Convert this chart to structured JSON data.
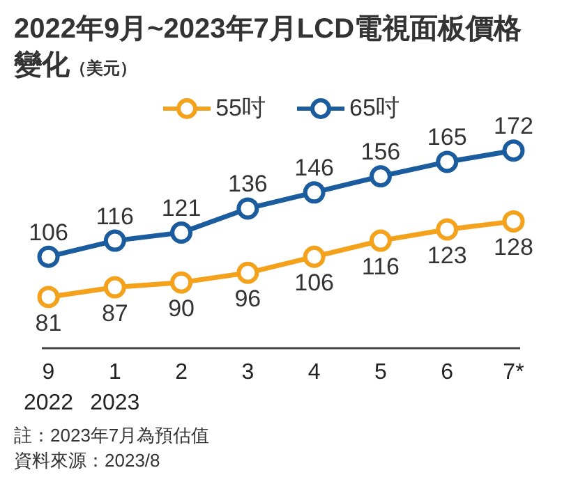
{
  "chart_data": {
    "type": "line",
    "title": "2022年9月~2023年7月LCD電視面板價格變化",
    "subtitle": "（美元）",
    "categories": [
      "9\n2022",
      "1\n2023",
      "2",
      "3",
      "4",
      "5",
      "6",
      "7*"
    ],
    "series": [
      {
        "name": "55吋",
        "color": "#f4a11c",
        "values": [
          81,
          87,
          90,
          96,
          106,
          116,
          123,
          128
        ]
      },
      {
        "name": "65吋",
        "color": "#1b5c9e",
        "values": [
          106,
          116,
          121,
          136,
          146,
          156,
          165,
          172
        ]
      }
    ],
    "data_labels": true,
    "marker": "circle",
    "legend": "top",
    "tick_labels": "x",
    "annotations": [
      "註：2023年7月為預估值",
      "資料來源：2023/8"
    ]
  }
}
